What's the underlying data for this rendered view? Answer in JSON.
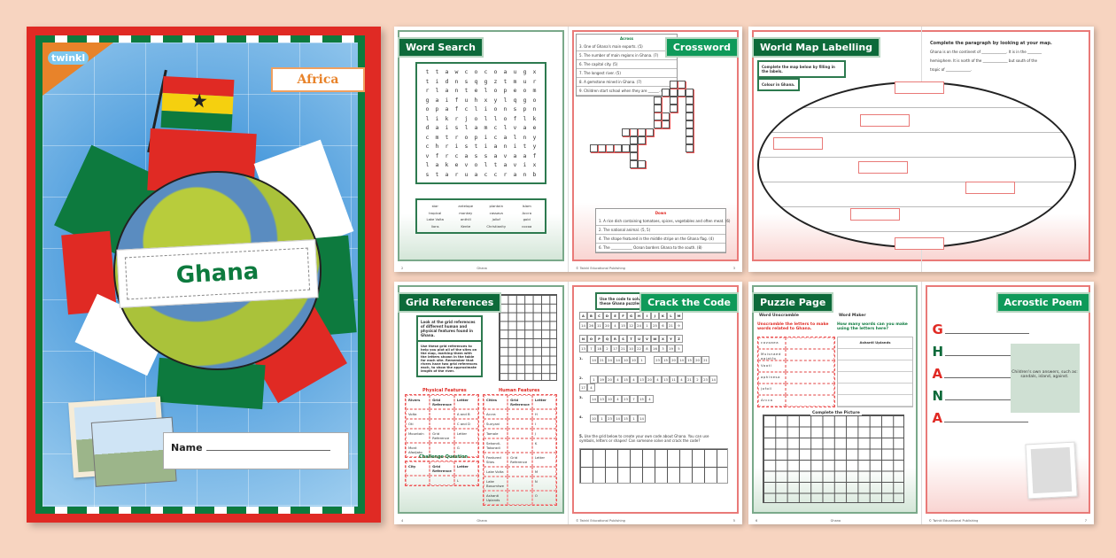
{
  "cover": {
    "brand": "twinkl",
    "region_label": "Africa",
    "title": "Ghana",
    "name_label": "Name",
    "flag_colors": [
      "#e02a24",
      "#f5d00f",
      "#0d7a3e"
    ]
  },
  "word_search": {
    "title": "Word Search",
    "grid": [
      [
        "t",
        "t",
        "a",
        "w",
        "c",
        "o",
        "c",
        "o",
        "a",
        "u",
        "g",
        "x"
      ],
      [
        "t",
        "i",
        "d",
        "n",
        "s",
        "q",
        "g",
        "z",
        "t",
        "m",
        "u",
        "r"
      ],
      [
        "r",
        "l",
        "a",
        "n",
        "t",
        "e",
        "l",
        "o",
        "p",
        "e",
        "o",
        "m"
      ],
      [
        "g",
        "a",
        "i",
        "f",
        "u",
        "h",
        "x",
        "y",
        "l",
        "q",
        "g",
        "o"
      ],
      [
        "o",
        "p",
        "a",
        "f",
        "c",
        "l",
        "i",
        "o",
        "n",
        "s",
        "p",
        "n"
      ],
      [
        "l",
        "i",
        "k",
        "r",
        "j",
        "o",
        "l",
        "l",
        "o",
        "f",
        "l",
        "k"
      ],
      [
        "d",
        "a",
        "i",
        "s",
        "l",
        "a",
        "m",
        "c",
        "l",
        "v",
        "a",
        "e"
      ],
      [
        "c",
        "m",
        "t",
        "r",
        "o",
        "p",
        "i",
        "c",
        "a",
        "l",
        "n",
        "y"
      ],
      [
        "c",
        "h",
        "r",
        "i",
        "s",
        "t",
        "i",
        "a",
        "n",
        "i",
        "t",
        "y"
      ],
      [
        "v",
        "f",
        "r",
        "c",
        "a",
        "s",
        "s",
        "a",
        "v",
        "a",
        "a",
        "f"
      ],
      [
        "l",
        "a",
        "k",
        "e",
        "v",
        "o",
        "l",
        "t",
        "a",
        "v",
        "i",
        "x"
      ],
      [
        "s",
        "t",
        "a",
        "r",
        "u",
        "a",
        "c",
        "c",
        "r",
        "a",
        "n",
        "b"
      ]
    ],
    "words": [
      "star",
      "antelope",
      "plantain",
      "Islam",
      "tropical",
      "monkey",
      "cassava",
      "Accra",
      "Lake Volta",
      "anthill",
      "jollof",
      "gold",
      "lions",
      "Kente",
      "Christianity",
      "cocoa"
    ]
  },
  "crossword": {
    "title": "Crossword",
    "across_label": "Across",
    "across": [
      "3. One of Ghana's main exports. (5)",
      "5. The number of main regions in Ghana. (7)",
      "6. The capital city. (5)",
      "7. The longest river. (5)",
      "8. A gemstone mined in Ghana. (7)",
      "9. Children start school when they are ______. (3)"
    ],
    "down_label": "Down",
    "down": [
      "1. A rice dish containing tomatoes, spices, vegetables and often meat. (6)",
      "2. The national animal. (5, 5)",
      "4. The shape featured in the middle stripe on the Ghana flag. (4)",
      "6. The ____________ Ocean borders Ghana to the south. (8)"
    ]
  },
  "world_map": {
    "title": "World Map Labelling",
    "instruction_1": "Complete the map below by filling in the labels.",
    "instruction_2": "Colour in Ghana.",
    "paragraph_title": "Complete the paragraph by looking at your map.",
    "paragraph_lines": [
      "Ghana is on the continent of ______________. It is in the ________",
      "hemisphere. It is north of the ______________ but south of the",
      "tropic of ______________."
    ]
  },
  "grid_references": {
    "title": "Grid References",
    "intro": "Look at the grid references of different human and physical features found in Ghana.",
    "instructions": "Use these grid references to help you plot all of the sites on the map, marking them with the letters shown in the table for each site. Remember that rivers have two grid references each, to show the approximate length of the river.",
    "y_axis": [
      "10",
      "9",
      "8",
      "7",
      "6",
      "5",
      "4",
      "3",
      "2",
      "1"
    ],
    "x_axis": [
      "A",
      "B",
      "C",
      "D",
      "E",
      "F",
      "G"
    ],
    "physical_heading": "Physical Features",
    "physical_columns": [
      "Rivers",
      "Grid Reference",
      "Letter"
    ],
    "physical_rows": [
      [
        "Volta",
        "",
        "A and B"
      ],
      [
        "Oti",
        "",
        "C and D"
      ],
      [
        "Mountain",
        "Grid Reference",
        "Letter"
      ],
      [
        "Mont Afadjato",
        "",
        "G"
      ]
    ],
    "challenge_heading": "Challenge Question",
    "challenge_columns": [
      "City",
      "Grid Reference",
      "Letter"
    ],
    "challenge_rows": [
      [
        "",
        "",
        "L"
      ]
    ],
    "human_heading": "Human Features",
    "human_columns": [
      "Cities",
      "Grid Reference",
      "Letter"
    ],
    "human_rows": [
      [
        "Accra",
        "",
        "H"
      ],
      [
        "Sunyani",
        "",
        "I"
      ],
      [
        "Tamale",
        "",
        "J"
      ],
      [
        "Sekondi-Takoradi",
        "",
        "K"
      ],
      [
        "Featured Sites",
        "Grid Reference",
        "Letter"
      ],
      [
        "Lake Volta",
        "",
        "M"
      ],
      [
        "Lake Bosumtwe",
        "",
        "N"
      ],
      [
        "Ashanti Uplands",
        "",
        "O"
      ]
    ]
  },
  "crack_code": {
    "title": "Crack the Code",
    "instruction": "Use the code to solve these Ghana puzzles!",
    "key_letters_1": [
      "A",
      "B",
      "C",
      "D",
      "E",
      "F",
      "G",
      "H",
      "I",
      "J",
      "K",
      "L",
      "M"
    ],
    "key_numbers_1": [
      "14",
      "26",
      "11",
      "20",
      "4",
      "15",
      "12",
      "24",
      "1",
      "25",
      "6",
      "21",
      "9"
    ],
    "key_letters_2": [
      "N",
      "O",
      "P",
      "Q",
      "R",
      "S",
      "T",
      "U",
      "V",
      "W",
      "X",
      "Y",
      "Z"
    ],
    "key_numbers_2": [
      "13",
      "7",
      "18",
      "2",
      "17",
      "21",
      "10",
      "22",
      "8",
      "16",
      "3",
      "19",
      "5"
    ],
    "puzzles": [
      {
        "n": "1.",
        "codes": [
          "14",
          "21",
          "24",
          "14",
          "10",
          "10",
          "1",
          "",
          "23",
          "15",
          "20",
          "14",
          "15",
          "20",
          "21"
        ]
      },
      {
        "n": "2.",
        "codes": [
          "1",
          "19",
          "20",
          "4",
          "15",
          "4",
          "13",
          "20",
          "4",
          "13",
          "11",
          "4",
          "21",
          "2",
          "23",
          "14",
          "17",
          "4"
        ]
      },
      {
        "n": "3.",
        "codes": [
          "14",
          "13",
          "10",
          "4",
          "23",
          "7",
          "15",
          "4"
        ]
      },
      {
        "n": "4.",
        "codes": [
          "10",
          "1",
          "23",
          "14",
          "15",
          "1",
          "14"
        ]
      }
    ],
    "task_5_number": "5.",
    "task_5": "Use the grid below to create your own code about Ghana. You can use symbols, letters or shapes! Can someone solve and crack the code?"
  },
  "puzzle_page": {
    "title": "Puzzle Page",
    "unscramble_heading": "Word Unscramble",
    "unscramble_instruction": "Unscramble the letters to make words related to Ghana.",
    "scrambled": [
      "covoaea",
      "Muisnaed aajatfo",
      "Vaotl",
      "aphlnesa",
      "jofoll",
      "Arcca"
    ],
    "maker_heading": "Word Maker",
    "maker_instruction": "How many words can you make using the letters here?",
    "maker_letters": "Ashanti Uplands",
    "picture_heading": "Complete the Picture"
  },
  "acrostic": {
    "title": "Acrostic Poem",
    "letters": [
      "G",
      "H",
      "A",
      "N",
      "A"
    ],
    "letter_colors": [
      "#e02a24",
      "#0d6a3a",
      "#e02a24",
      "#0d6a3a",
      "#e02a24"
    ],
    "answer_note": "Children's own answers, such as: sandals, island, against."
  },
  "footer": {
    "title": "Ghana",
    "copyright": "© Twinkl Educational Publishing"
  }
}
